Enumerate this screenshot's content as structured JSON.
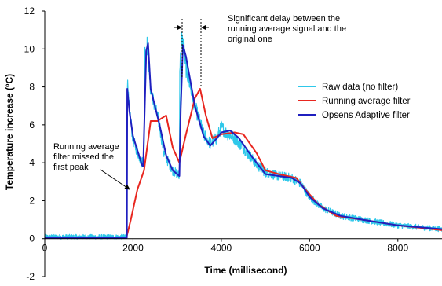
{
  "chart_data": {
    "type": "line",
    "title": "",
    "xlabel": "Time (millisecond)",
    "ylabel": "Temperature increase (ºC)",
    "xlim": [
      0,
      9000
    ],
    "ylim": [
      -2,
      12
    ],
    "x_ticks": [
      0,
      2000,
      4000,
      6000,
      8000
    ],
    "y_ticks": [
      -2,
      0,
      2,
      4,
      6,
      8,
      10,
      12
    ],
    "grid": false,
    "legend_position": "right",
    "annotations": [
      {
        "id": "first-peak",
        "lines": [
          "Running average",
          "filter missed the",
          "first peak"
        ]
      },
      {
        "id": "delay",
        "lines": [
          "Significant delay between the",
          "running average signal and the",
          "original one"
        ]
      }
    ],
    "series": [
      {
        "name": "Raw data (no filter)",
        "color": "#2ec8ea",
        "noisy": true,
        "points": [
          [
            0,
            0.1
          ],
          [
            1800,
            0.1
          ],
          [
            1860,
            0.2
          ],
          [
            1870,
            8.2
          ],
          [
            1900,
            7.2
          ],
          [
            2000,
            5.2
          ],
          [
            2200,
            4.0
          ],
          [
            2250,
            4.6
          ],
          [
            2270,
            9.8
          ],
          [
            2320,
            10.2
          ],
          [
            2400,
            7.8
          ],
          [
            2600,
            6.0
          ],
          [
            2700,
            4.5
          ],
          [
            2900,
            3.6
          ],
          [
            3050,
            3.3
          ],
          [
            3060,
            9.0
          ],
          [
            3100,
            10.5
          ],
          [
            3150,
            10.1
          ],
          [
            3200,
            9.0
          ],
          [
            3400,
            7.0
          ],
          [
            3600,
            5.5
          ],
          [
            3750,
            5.0
          ],
          [
            3900,
            5.3
          ],
          [
            4000,
            5.9
          ],
          [
            4100,
            5.6
          ],
          [
            4300,
            5.3
          ],
          [
            4500,
            4.8
          ],
          [
            4800,
            3.9
          ],
          [
            5000,
            3.5
          ],
          [
            5300,
            3.3
          ],
          [
            5600,
            3.2
          ],
          [
            5800,
            2.9
          ],
          [
            6000,
            2.2
          ],
          [
            6300,
            1.6
          ],
          [
            6700,
            1.2
          ],
          [
            7200,
            1.0
          ],
          [
            8000,
            0.7
          ],
          [
            9000,
            0.5
          ]
        ]
      },
      {
        "name": "Running average filter",
        "color": "#e8261f",
        "noisy": false,
        "points": [
          [
            0,
            0.05
          ],
          [
            1850,
            0.05
          ],
          [
            1950,
            1.0
          ],
          [
            2100,
            2.6
          ],
          [
            2250,
            3.6
          ],
          [
            2400,
            6.2
          ],
          [
            2550,
            6.2
          ],
          [
            2750,
            6.5
          ],
          [
            2900,
            4.8
          ],
          [
            3050,
            4.0
          ],
          [
            3200,
            5.5
          ],
          [
            3400,
            7.4
          ],
          [
            3520,
            7.9
          ],
          [
            3650,
            6.5
          ],
          [
            3800,
            5.3
          ],
          [
            4000,
            5.5
          ],
          [
            4300,
            5.6
          ],
          [
            4500,
            5.5
          ],
          [
            4800,
            4.5
          ],
          [
            5000,
            3.6
          ],
          [
            5300,
            3.4
          ],
          [
            5700,
            3.2
          ],
          [
            5900,
            2.6
          ],
          [
            6200,
            1.8
          ],
          [
            6600,
            1.2
          ],
          [
            7200,
            1.0
          ],
          [
            8000,
            0.7
          ],
          [
            9000,
            0.45
          ]
        ]
      },
      {
        "name": "Opsens Adaptive filter",
        "color": "#1f1fbf",
        "noisy": false,
        "points": [
          [
            0,
            0.05
          ],
          [
            1860,
            0.05
          ],
          [
            1870,
            7.9
          ],
          [
            1920,
            6.7
          ],
          [
            2000,
            5.4
          ],
          [
            2200,
            3.9
          ],
          [
            2230,
            3.8
          ],
          [
            2260,
            6.5
          ],
          [
            2300,
            9.9
          ],
          [
            2340,
            10.3
          ],
          [
            2400,
            7.9
          ],
          [
            2600,
            6.0
          ],
          [
            2750,
            4.4
          ],
          [
            2900,
            3.6
          ],
          [
            3050,
            3.3
          ],
          [
            3080,
            6.8
          ],
          [
            3130,
            10.2
          ],
          [
            3200,
            9.6
          ],
          [
            3400,
            7.0
          ],
          [
            3600,
            5.4
          ],
          [
            3750,
            4.9
          ],
          [
            3900,
            5.3
          ],
          [
            4000,
            5.6
          ],
          [
            4200,
            5.7
          ],
          [
            4400,
            5.3
          ],
          [
            4700,
            4.3
          ],
          [
            5000,
            3.4
          ],
          [
            5300,
            3.3
          ],
          [
            5600,
            3.2
          ],
          [
            5800,
            2.9
          ],
          [
            6000,
            2.2
          ],
          [
            6300,
            1.6
          ],
          [
            6700,
            1.2
          ],
          [
            7200,
            1.0
          ],
          [
            8000,
            0.7
          ],
          [
            9000,
            0.5
          ]
        ]
      }
    ]
  }
}
